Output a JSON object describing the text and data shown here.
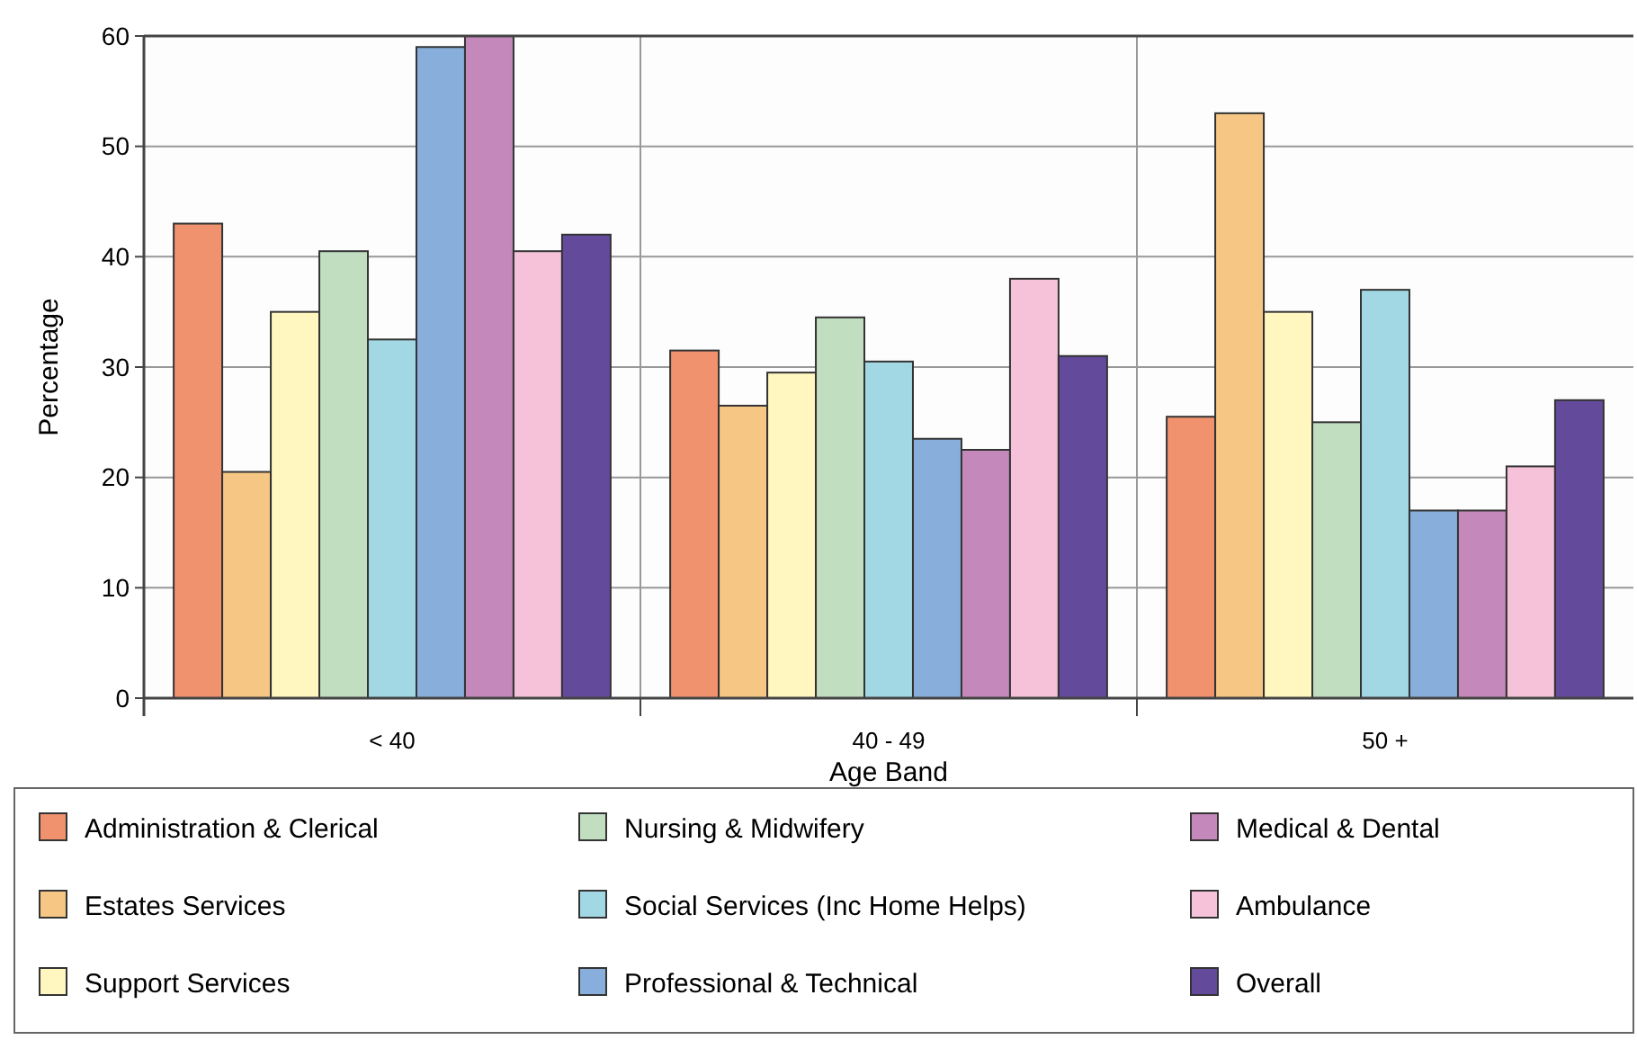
{
  "chart_data": {
    "type": "bar",
    "xlabel": "Age Band",
    "ylabel": "Percentage",
    "categories": [
      "< 40",
      "40 - 49",
      "50 +"
    ],
    "ylim": [
      0,
      60
    ],
    "yticks": [
      0,
      10,
      20,
      30,
      40,
      50,
      60
    ],
    "grid": true,
    "legend": "bottom",
    "series": [
      {
        "name": "Administration & Clerical",
        "color": "#f0926e",
        "values": [
          43,
          31.5,
          25.5
        ]
      },
      {
        "name": "Estates Services",
        "color": "#f6c784",
        "values": [
          20.5,
          26.5,
          53
        ]
      },
      {
        "name": "Support Services",
        "color": "#fff6c0",
        "values": [
          35,
          29.5,
          35
        ]
      },
      {
        "name": "Nursing & Midwifery",
        "color": "#c1dec0",
        "values": [
          40.5,
          34.5,
          25
        ]
      },
      {
        "name": "Social Services (Inc Home Helps)",
        "color": "#a1d8e4",
        "values": [
          32.5,
          30.5,
          37
        ]
      },
      {
        "name": "Professional & Technical",
        "color": "#88afdc",
        "values": [
          59,
          23.5,
          17
        ]
      },
      {
        "name": "Medical & Dental",
        "color": "#c488bb",
        "values": [
          60,
          22.5,
          17
        ]
      },
      {
        "name": "Ambulance",
        "color": "#f5c2da",
        "values": [
          40.5,
          38,
          21
        ]
      },
      {
        "name": "Overall",
        "color": "#634a9b",
        "values": [
          42,
          31,
          27
        ]
      }
    ]
  }
}
